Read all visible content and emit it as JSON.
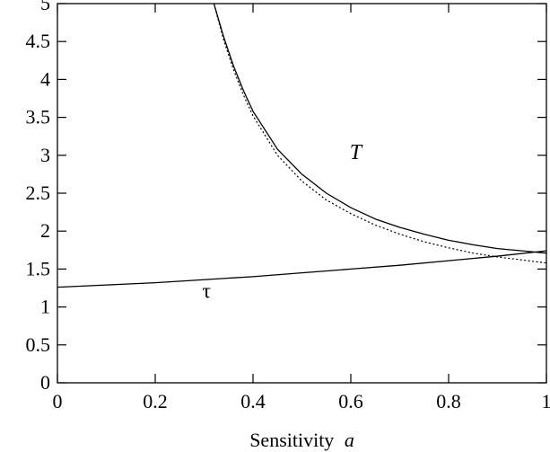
{
  "chart_data": {
    "type": "line",
    "xlabel": "Sensitivity",
    "xlabel_var": "a",
    "xlim": [
      0,
      1
    ],
    "ylim": [
      0,
      5
    ],
    "xticks": [
      "0",
      "0.2",
      "0.4",
      "0.6",
      "0.8",
      "1"
    ],
    "yticks": [
      "0",
      "0.5",
      "1",
      "1.5",
      "2",
      "2.5",
      "3",
      "3.5",
      "4",
      "4.5",
      "5"
    ],
    "grid": false,
    "series": [
      {
        "name": "T",
        "style": "solid",
        "x": [
          0.32,
          0.34,
          0.36,
          0.38,
          0.4,
          0.45,
          0.5,
          0.55,
          0.6,
          0.65,
          0.7,
          0.75,
          0.8,
          0.85,
          0.9,
          0.95,
          1.0
        ],
        "y": [
          5.0,
          4.56,
          4.18,
          3.86,
          3.58,
          3.08,
          2.75,
          2.5,
          2.31,
          2.16,
          2.05,
          1.96,
          1.88,
          1.82,
          1.77,
          1.74,
          1.71
        ]
      },
      {
        "name": "",
        "style": "dotted",
        "x": [
          0.32,
          0.34,
          0.36,
          0.38,
          0.4,
          0.45,
          0.5,
          0.55,
          0.6,
          0.65,
          0.7,
          0.75,
          0.8,
          0.85,
          0.9,
          0.95,
          1.0
        ],
        "y": [
          5.0,
          4.52,
          4.13,
          3.8,
          3.52,
          3.0,
          2.66,
          2.41,
          2.23,
          2.08,
          1.96,
          1.86,
          1.78,
          1.71,
          1.66,
          1.62,
          1.58
        ]
      },
      {
        "name": "τ",
        "style": "solid",
        "x": [
          0.0,
          0.1,
          0.2,
          0.3,
          0.4,
          0.5,
          0.6,
          0.7,
          0.8,
          0.9,
          1.0
        ],
        "y": [
          1.26,
          1.29,
          1.32,
          1.36,
          1.4,
          1.45,
          1.5,
          1.55,
          1.61,
          1.67,
          1.74
        ]
      }
    ],
    "annotations": [
      {
        "text": "T",
        "x": 0.61,
        "y": 2.95
      },
      {
        "text": "τ",
        "x": 0.305,
        "y": 1.12
      }
    ]
  }
}
